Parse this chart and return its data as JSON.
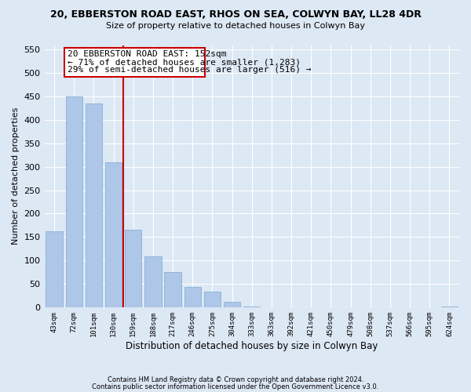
{
  "title1": "20, EBBERSTON ROAD EAST, RHOS ON SEA, COLWYN BAY, LL28 4DR",
  "title2": "Size of property relative to detached houses in Colwyn Bay",
  "xlabel": "Distribution of detached houses by size in Colwyn Bay",
  "ylabel": "Number of detached properties",
  "bin_labels": [
    "43sqm",
    "72sqm",
    "101sqm",
    "130sqm",
    "159sqm",
    "188sqm",
    "217sqm",
    "246sqm",
    "275sqm",
    "304sqm",
    "333sqm",
    "363sqm",
    "392sqm",
    "421sqm",
    "450sqm",
    "479sqm",
    "508sqm",
    "537sqm",
    "566sqm",
    "595sqm",
    "624sqm"
  ],
  "bar_values": [
    163,
    450,
    436,
    310,
    165,
    108,
    75,
    43,
    33,
    11,
    1,
    0,
    0,
    0,
    0,
    0,
    0,
    0,
    0,
    0,
    2
  ],
  "bar_color": "#aec6e8",
  "vline_bin_index": 4,
  "marker_label": "20 EBBERSTON ROAD EAST: 152sqm",
  "annotation_line1": "← 71% of detached houses are smaller (1,283)",
  "annotation_line2": "29% of semi-detached houses are larger (516) →",
  "vline_color": "#cc0000",
  "box_color": "#cc0000",
  "ylim": [
    0,
    560
  ],
  "yticks": [
    0,
    50,
    100,
    150,
    200,
    250,
    300,
    350,
    400,
    450,
    500,
    550
  ],
  "footer1": "Contains HM Land Registry data © Crown copyright and database right 2024.",
  "footer2": "Contains public sector information licensed under the Open Government Licence v3.0.",
  "bg_color": "#dde8f5"
}
